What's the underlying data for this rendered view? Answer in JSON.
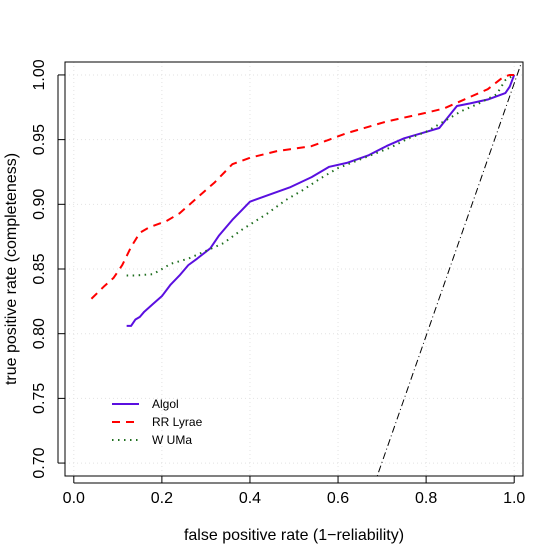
{
  "chart_data": {
    "type": "line",
    "xlabel": "false positive rate (1−reliability)",
    "ylabel": "true positive rate (completeness)",
    "xlim": [
      -0.02,
      1.02
    ],
    "ylim": [
      0.69,
      1.01
    ],
    "x_ticks": [
      "0.0",
      "0.2",
      "0.4",
      "0.6",
      "0.8",
      "1.0"
    ],
    "y_ticks": [
      "0.70",
      "0.75",
      "0.80",
      "0.85",
      "0.90",
      "0.95",
      "1.00"
    ],
    "grid": true,
    "legend_position": "bottom-left",
    "series": [
      {
        "name": "Algol",
        "color": "#5a0fe0",
        "dash": "solid",
        "x": [
          0.12,
          0.13,
          0.14,
          0.15,
          0.16,
          0.18,
          0.2,
          0.22,
          0.24,
          0.26,
          0.28,
          0.31,
          0.33,
          0.36,
          0.38,
          0.4,
          0.44,
          0.49,
          0.54,
          0.58,
          0.62,
          0.67,
          0.71,
          0.75,
          0.79,
          0.83,
          0.87,
          0.9,
          0.94,
          0.98,
          0.99,
          1.0
        ],
        "y": [
          0.806,
          0.806,
          0.811,
          0.813,
          0.817,
          0.823,
          0.829,
          0.838,
          0.845,
          0.853,
          0.858,
          0.866,
          0.876,
          0.888,
          0.895,
          0.902,
          0.907,
          0.913,
          0.921,
          0.929,
          0.932,
          0.938,
          0.945,
          0.951,
          0.955,
          0.959,
          0.976,
          0.978,
          0.981,
          0.986,
          0.991,
          1.0
        ]
      },
      {
        "name": "RR Lyrae",
        "color": "#ff0000",
        "dash": "dashed",
        "x": [
          0.04,
          0.07,
          0.09,
          0.11,
          0.13,
          0.15,
          0.17,
          0.21,
          0.24,
          0.28,
          0.32,
          0.36,
          0.4,
          0.46,
          0.54,
          0.58,
          0.62,
          0.67,
          0.71,
          0.75,
          0.79,
          0.84,
          0.9,
          0.94,
          0.97,
          0.98,
          0.99,
          1.0
        ],
        "y": [
          0.827,
          0.837,
          0.843,
          0.853,
          0.867,
          0.878,
          0.882,
          0.887,
          0.893,
          0.905,
          0.917,
          0.931,
          0.936,
          0.941,
          0.945,
          0.95,
          0.955,
          0.96,
          0.964,
          0.967,
          0.97,
          0.974,
          0.983,
          0.989,
          0.997,
          0.999,
          1.0,
          1.0
        ]
      },
      {
        "name": "W UMa",
        "color": "#1e6e1e",
        "dash": "dotted",
        "x": [
          0.12,
          0.14,
          0.18,
          0.22,
          0.26,
          0.3,
          0.34,
          0.38,
          0.44,
          0.48,
          0.52,
          0.56,
          0.6,
          0.66,
          0.72,
          0.76,
          0.8,
          0.84,
          0.88,
          0.92,
          0.96,
          0.98,
          1.0
        ],
        "y": [
          0.845,
          0.845,
          0.846,
          0.854,
          0.858,
          0.864,
          0.87,
          0.88,
          0.893,
          0.903,
          0.911,
          0.92,
          0.928,
          0.936,
          0.944,
          0.951,
          0.956,
          0.964,
          0.972,
          0.978,
          0.985,
          0.996,
          1.0
        ]
      }
    ],
    "reference_line": {
      "color": "#000000",
      "dash": "dotdash",
      "x": [
        0.689,
        1.02
      ],
      "y": [
        0.69,
        1.013
      ]
    }
  }
}
